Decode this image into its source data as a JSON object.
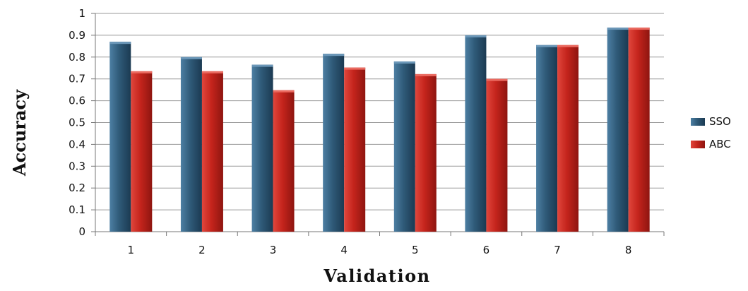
{
  "chart_data": {
    "type": "bar",
    "categories": [
      "1",
      "2",
      "3",
      "4",
      "5",
      "6",
      "7",
      "8"
    ],
    "series": [
      {
        "name": "SSO",
        "values": [
          0.87,
          0.8,
          0.765,
          0.815,
          0.78,
          0.9,
          0.855,
          0.935
        ]
      },
      {
        "name": "ABC",
        "values": [
          0.735,
          0.735,
          0.648,
          0.752,
          0.722,
          0.7,
          0.855,
          0.935
        ]
      }
    ],
    "xlabel": "Validation",
    "ylabel": "Accuracy",
    "ylim": [
      0,
      1
    ],
    "yticks": [
      "0",
      "0.1",
      "0.2",
      "0.3",
      "0.4",
      "0.5",
      "0.6",
      "0.7",
      "0.8",
      "0.9",
      "1"
    ],
    "grid": true,
    "legend_position": "right",
    "colors": {
      "SSO": "#2f5a78",
      "ABC": "#c4241c"
    }
  }
}
